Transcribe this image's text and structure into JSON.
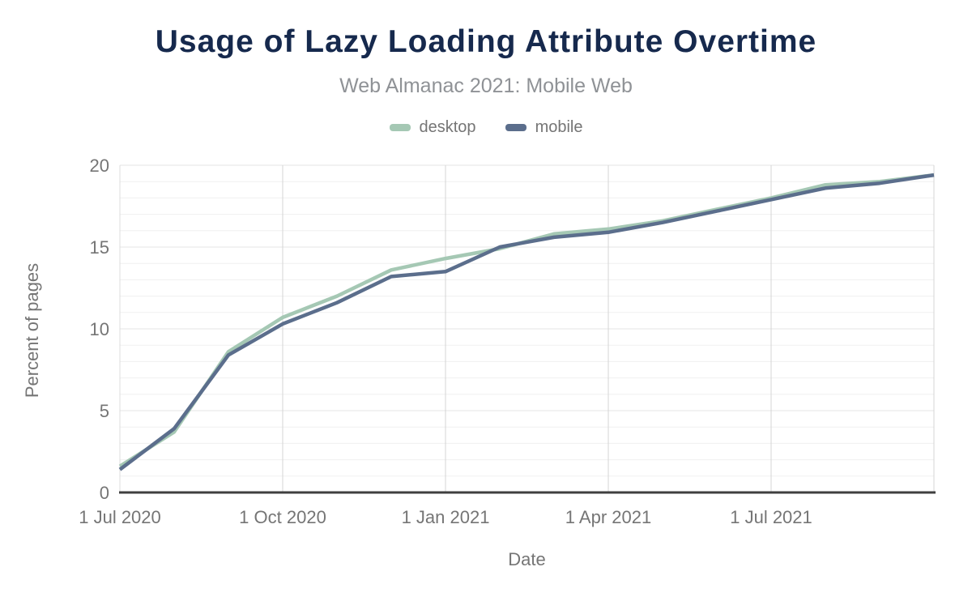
{
  "chart_data": {
    "type": "line",
    "title": "Usage of Lazy Loading Attribute Overtime",
    "subtitle": "Web Almanac 2021: Mobile Web",
    "xlabel": "Date",
    "ylabel": "Percent of pages",
    "x": [
      "Jul 2020",
      "Aug 2020",
      "Sep 2020",
      "Oct 2020",
      "Nov 2020",
      "Dec 2020",
      "Jan 2021",
      "Feb 2021",
      "Mar 2021",
      "Apr 2021",
      "May 2021",
      "Jun 2021",
      "Jul 2021",
      "Aug 2021",
      "Sep 2021",
      "Oct 2021"
    ],
    "x_tick_labels": [
      "1 Jul 2020",
      "1 Oct 2020",
      "1 Jan 2021",
      "1 Apr 2021",
      "1 Jul 2021"
    ],
    "x_tick_indices": [
      0,
      3,
      6,
      9,
      12
    ],
    "y_ticks": [
      0,
      5,
      10,
      15,
      20
    ],
    "ylim": [
      0,
      20
    ],
    "grid": {
      "horizontal_step": 1,
      "vertical_at_quarter_ticks": true
    },
    "legend_position": "top",
    "series": [
      {
        "name": "desktop",
        "color": "#a5c8b4",
        "values": [
          1.6,
          3.7,
          8.6,
          10.7,
          12.0,
          13.6,
          14.3,
          14.9,
          15.8,
          16.1,
          16.6,
          17.3,
          18.0,
          18.8,
          19.0,
          19.4
        ]
      },
      {
        "name": "mobile",
        "color": "#5b6e8c",
        "values": [
          1.4,
          3.9,
          8.4,
          10.3,
          11.6,
          13.2,
          13.5,
          15.0,
          15.6,
          15.9,
          16.5,
          17.2,
          17.9,
          18.6,
          18.9,
          19.4
        ]
      }
    ]
  },
  "colors": {
    "title": "#16294d",
    "subtitle": "#8f9296",
    "tick_text": "#757575",
    "gridline_minor": "#f0f0f0",
    "gridline_major": "#e6e6e6",
    "gridline_vertical": "#d4d4d4",
    "plot_border": "#dcdcdc",
    "axis_line": "#3f3f3f"
  }
}
